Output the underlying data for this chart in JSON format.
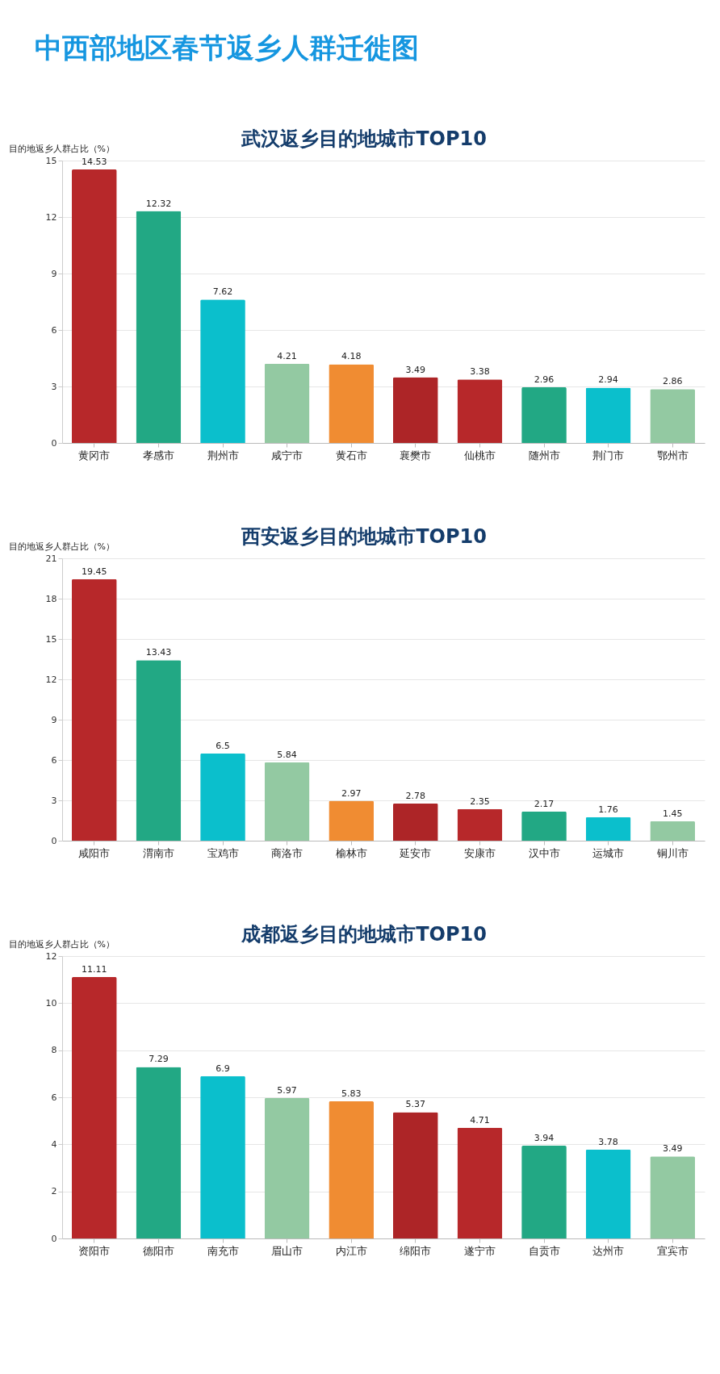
{
  "chart_data": [
    {
      "type": "other",
      "title": "中西部地区春节返乡人群迁徙图"
    },
    {
      "type": "bar",
      "title": "武汉返乡目的地城市TOP10",
      "ylabel": "目的地返乡人群占比（%）",
      "categories": [
        "黄冈市",
        "孝感市",
        "荆州市",
        "咸宁市",
        "黄石市",
        "襄樊市",
        "仙桃市",
        "随州市",
        "荆门市",
        "鄂州市"
      ],
      "values": [
        14.53,
        12.32,
        7.62,
        4.21,
        4.18,
        3.49,
        3.38,
        2.96,
        2.94,
        2.86
      ],
      "colors": [
        "#b7282a",
        "#22a884",
        "#0bbfcc",
        "#93c9a2",
        "#f08c32",
        "#ad2527",
        "#b7282a",
        "#22a884",
        "#0bbfcc",
        "#93c9a2"
      ],
      "ylim": [
        0,
        15
      ],
      "yticks": [
        0,
        3,
        6,
        9,
        12,
        15
      ],
      "grid": "y",
      "data_labels": true
    },
    {
      "type": "bar",
      "title": "西安返乡目的地城市TOP10",
      "ylabel": "目的地返乡人群占比（%）",
      "categories": [
        "咸阳市",
        "渭南市",
        "宝鸡市",
        "商洛市",
        "榆林市",
        "延安市",
        "安康市",
        "汉中市",
        "运城市",
        "铜川市"
      ],
      "values": [
        19.45,
        13.43,
        6.5,
        5.84,
        2.97,
        2.78,
        2.35,
        2.17,
        1.76,
        1.45
      ],
      "colors": [
        "#b7282a",
        "#22a884",
        "#0bbfcc",
        "#93c9a2",
        "#f08c32",
        "#ad2527",
        "#b7282a",
        "#22a884",
        "#0bbfcc",
        "#93c9a2"
      ],
      "ylim": [
        0,
        21
      ],
      "yticks": [
        0,
        3,
        6,
        9,
        12,
        15,
        18,
        21
      ],
      "grid": "y",
      "data_labels": true
    },
    {
      "type": "bar",
      "title": "成都返乡目的地城市TOP10",
      "ylabel": "目的地返乡人群占比（%）",
      "categories": [
        "资阳市",
        "德阳市",
        "南充市",
        "眉山市",
        "内江市",
        "绵阳市",
        "遂宁市",
        "自贡市",
        "达州市",
        "宜宾市"
      ],
      "values": [
        11.11,
        7.29,
        6.9,
        5.97,
        5.83,
        5.37,
        4.71,
        3.94,
        3.78,
        3.49
      ],
      "colors": [
        "#b7282a",
        "#22a884",
        "#0bbfcc",
        "#93c9a2",
        "#f08c32",
        "#ad2527",
        "#b7282a",
        "#22a884",
        "#0bbfcc",
        "#93c9a2"
      ],
      "ylim": [
        0,
        12
      ],
      "yticks": [
        0,
        2,
        4,
        6,
        8,
        10,
        12
      ],
      "grid": "y",
      "data_labels": true
    }
  ]
}
